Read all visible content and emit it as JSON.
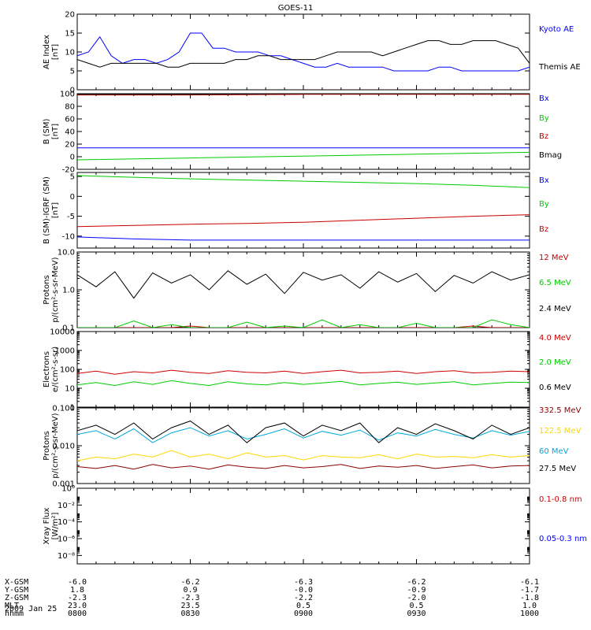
{
  "title": "GOES-11",
  "date": "2009 Jan 25",
  "chart_data": [
    {
      "type": "line",
      "ylabel": [
        "AE Index",
        "[nT]"
      ],
      "ylim": [
        0,
        20
      ],
      "yscale": "linear",
      "yticks": [
        0,
        5,
        10,
        15,
        20
      ],
      "series": [
        {
          "name": "Kyoto AE",
          "color": "#0000ff",
          "x": [
            800,
            803,
            806,
            809,
            812,
            815,
            818,
            821,
            824,
            827,
            830,
            833,
            836,
            839,
            842,
            845,
            848,
            851,
            854,
            857,
            900,
            903,
            906,
            909,
            912,
            915,
            918,
            921,
            924,
            927,
            930,
            933,
            936,
            939,
            942,
            945,
            948,
            951,
            954,
            957,
            1000
          ],
          "y": [
            9,
            10,
            14,
            9,
            7,
            8,
            8,
            7,
            8,
            10,
            15,
            15,
            11,
            11,
            10,
            10,
            10,
            9,
            9,
            8,
            7,
            6,
            6,
            7,
            6,
            6,
            6,
            6,
            5,
            5,
            5,
            5,
            6,
            6,
            5,
            5,
            5,
            5,
            5,
            5,
            6
          ]
        },
        {
          "name": "Themis AE",
          "color": "#000000",
          "x": [
            800,
            803,
            806,
            809,
            812,
            815,
            818,
            821,
            824,
            827,
            830,
            833,
            836,
            839,
            842,
            845,
            848,
            851,
            854,
            857,
            900,
            903,
            906,
            909,
            912,
            915,
            918,
            921,
            924,
            927,
            930,
            933,
            936,
            939,
            942,
            945,
            948,
            951,
            954,
            957,
            1000
          ],
          "y": [
            8,
            7,
            6,
            7,
            7,
            7,
            7,
            7,
            6,
            6,
            7,
            7,
            7,
            7,
            8,
            8,
            9,
            9,
            8,
            8,
            8,
            8,
            9,
            10,
            10,
            10,
            10,
            9,
            10,
            11,
            12,
            13,
            13,
            12,
            12,
            13,
            13,
            13,
            12,
            11,
            7
          ]
        }
      ]
    },
    {
      "type": "line",
      "ylabel": [
        "B (SM)",
        "[nT]"
      ],
      "ylim": [
        -20,
        100
      ],
      "yscale": "linear",
      "yticks": [
        -20,
        0,
        20,
        40,
        60,
        80,
        100
      ],
      "series": [
        {
          "name": "Bx",
          "color": "#0000ff",
          "x": [
            800,
            1000
          ],
          "y": [
            14,
            14
          ]
        },
        {
          "name": "By",
          "color": "#00cc00",
          "x": [
            800,
            830,
            900,
            930,
            1000
          ],
          "y": [
            -5,
            -2,
            1,
            4,
            7
          ]
        },
        {
          "name": "Bz",
          "color": "#cc0000",
          "x": [
            800,
            830,
            900,
            930,
            1000
          ],
          "y": [
            98,
            98,
            99,
            99,
            99
          ]
        },
        {
          "name": "Bmag",
          "color": "#000000",
          "x": [
            800,
            830,
            900,
            930,
            1000
          ],
          "y": [
            99,
            99,
            100,
            100,
            100
          ]
        }
      ]
    },
    {
      "type": "line",
      "ylabel": [
        "B (SM)-IGRF (SM)",
        "[nT]"
      ],
      "ylim": [
        -13,
        6
      ],
      "yscale": "linear",
      "yticks": [
        -10,
        -5,
        0,
        5
      ],
      "series": [
        {
          "name": "Bx",
          "color": "#0000ff",
          "x": [
            800,
            815,
            830,
            845,
            900,
            915,
            930,
            945,
            1000
          ],
          "y": [
            -10.2,
            -10.7,
            -11,
            -11,
            -11,
            -11,
            -11,
            -11,
            -11
          ]
        },
        {
          "name": "By",
          "color": "#00cc00",
          "x": [
            800,
            815,
            830,
            845,
            900,
            915,
            930,
            945,
            1000
          ],
          "y": [
            5.2,
            4.8,
            4.4,
            4.1,
            3.8,
            3.5,
            3.2,
            2.8,
            2.2
          ]
        },
        {
          "name": "Bz",
          "color": "#cc0000",
          "x": [
            800,
            815,
            830,
            845,
            900,
            915,
            930,
            945,
            1000
          ],
          "y": [
            -7.6,
            -7.3,
            -7.0,
            -6.8,
            -6.5,
            -6.0,
            -5.5,
            -5.0,
            -4.6
          ]
        }
      ]
    },
    {
      "type": "line",
      "ylabel": [
        "Protons",
        "p/(cm²-s-sr-MeV)"
      ],
      "ylim": [
        0.1,
        10
      ],
      "yscale": "log",
      "yticks": [
        0.1,
        1.0,
        10.0
      ],
      "ytick_labels": [
        "0.1",
        "1.0",
        "10.0"
      ],
      "series": [
        {
          "name": "12 MeV",
          "color": "#cc0000",
          "x": [
            800,
            805,
            810,
            815,
            820,
            825,
            830,
            835,
            840,
            845,
            850,
            855,
            900,
            905,
            910,
            915,
            920,
            925,
            930,
            935,
            940,
            945,
            950,
            955,
            1000
          ],
          "y": [
            0.1,
            0.1,
            0.1,
            0.1,
            0.1,
            0.1,
            0.11,
            0.1,
            0.1,
            0.1,
            0.1,
            0.1,
            0.1,
            0.1,
            0.1,
            0.1,
            0.1,
            0.1,
            0.1,
            0.1,
            0.1,
            0.11,
            0.1,
            0.1,
            0.1
          ]
        },
        {
          "name": "6.5 MeV",
          "color": "#00cc00",
          "x": [
            800,
            805,
            810,
            815,
            820,
            825,
            830,
            835,
            840,
            845,
            850,
            855,
            900,
            905,
            910,
            915,
            920,
            925,
            930,
            935,
            940,
            945,
            950,
            955,
            1000
          ],
          "y": [
            0.1,
            0.1,
            0.1,
            0.15,
            0.1,
            0.12,
            0.1,
            0.1,
            0.1,
            0.14,
            0.1,
            0.11,
            0.1,
            0.16,
            0.1,
            0.12,
            0.1,
            0.1,
            0.13,
            0.1,
            0.1,
            0.1,
            0.16,
            0.12,
            0.1
          ]
        },
        {
          "name": "2.4 MeV",
          "color": "#000000",
          "x": [
            800,
            805,
            810,
            815,
            820,
            825,
            830,
            835,
            840,
            845,
            850,
            855,
            900,
            905,
            910,
            915,
            920,
            925,
            930,
            935,
            940,
            945,
            950,
            955,
            1000
          ],
          "y": [
            2.5,
            1.2,
            3.0,
            0.6,
            2.8,
            1.5,
            2.5,
            1.0,
            3.2,
            1.4,
            2.6,
            0.8,
            2.9,
            1.8,
            2.5,
            1.1,
            3.0,
            1.6,
            2.7,
            0.9,
            2.4,
            1.5,
            3.0,
            1.8,
            2.5
          ]
        }
      ]
    },
    {
      "type": "line",
      "ylabel": [
        "Electrons",
        "e/(cm²-s-sr)"
      ],
      "ylim": [
        1,
        10000
      ],
      "yscale": "log",
      "yticks": [
        1,
        10,
        100,
        1000,
        10000
      ],
      "ytick_labels": [
        "1",
        "10",
        "100",
        "1000",
        "10000"
      ],
      "series": [
        {
          "name": "4.0 MeV",
          "color": "#cc0000",
          "x": [
            800,
            805,
            810,
            815,
            820,
            825,
            830,
            835,
            840,
            845,
            850,
            855,
            900,
            905,
            910,
            915,
            920,
            925,
            930,
            935,
            940,
            945,
            950,
            955,
            1000
          ],
          "y": [
            60,
            80,
            55,
            75,
            65,
            90,
            70,
            60,
            85,
            70,
            65,
            80,
            60,
            75,
            90,
            65,
            70,
            80,
            60,
            75,
            85,
            65,
            70,
            80,
            75
          ]
        },
        {
          "name": "2.0 MeV",
          "color": "#00cc00",
          "x": [
            800,
            805,
            810,
            815,
            820,
            825,
            830,
            835,
            840,
            845,
            850,
            855,
            900,
            905,
            910,
            915,
            920,
            925,
            930,
            935,
            940,
            945,
            950,
            955,
            1000
          ],
          "y": [
            15,
            20,
            14,
            22,
            16,
            25,
            18,
            14,
            22,
            17,
            15,
            20,
            16,
            19,
            23,
            15,
            18,
            21,
            16,
            19,
            22,
            15,
            18,
            21,
            20
          ]
        },
        {
          "name": "0.6 MeV",
          "color": "#000000",
          "x": [
            800,
            1000
          ],
          "y": [
            10000,
            10000
          ]
        }
      ]
    },
    {
      "type": "line",
      "ylabel": [
        "Protons",
        "p/(cm²-s-sr-MeV)"
      ],
      "ylim": [
        0.001,
        0.1
      ],
      "yscale": "log",
      "yticks": [
        0.001,
        0.01,
        0.1
      ],
      "ytick_labels": [
        "0.001",
        "0.010",
        "0.100"
      ],
      "series": [
        {
          "name": "332.5 MeV",
          "color": "#8b0000",
          "x": [
            800,
            805,
            810,
            815,
            820,
            825,
            830,
            835,
            840,
            845,
            850,
            855,
            900,
            905,
            910,
            915,
            920,
            925,
            930,
            935,
            940,
            945,
            950,
            955,
            1000
          ],
          "y": [
            0.0028,
            0.0025,
            0.003,
            0.0024,
            0.0032,
            0.0026,
            0.0029,
            0.0024,
            0.0031,
            0.0027,
            0.0025,
            0.003,
            0.0026,
            0.0028,
            0.0032,
            0.0025,
            0.0029,
            0.0027,
            0.003,
            0.0025,
            0.0028,
            0.0031,
            0.0026,
            0.0029,
            0.003
          ]
        },
        {
          "name": "122.5 MeV",
          "color": "#ffd700",
          "x": [
            800,
            805,
            810,
            815,
            820,
            825,
            830,
            835,
            840,
            845,
            850,
            855,
            900,
            905,
            910,
            915,
            920,
            925,
            930,
            935,
            940,
            945,
            950,
            955,
            1000
          ],
          "y": [
            0.004,
            0.005,
            0.0045,
            0.006,
            0.005,
            0.0075,
            0.005,
            0.006,
            0.0045,
            0.0065,
            0.005,
            0.0055,
            0.0042,
            0.0055,
            0.005,
            0.0048,
            0.0058,
            0.0045,
            0.006,
            0.005,
            0.0052,
            0.0048,
            0.0058,
            0.005,
            0.0055
          ]
        },
        {
          "name": "60 MeV",
          "color": "#00aadd",
          "x": [
            800,
            805,
            810,
            815,
            820,
            825,
            830,
            835,
            840,
            845,
            850,
            855,
            900,
            905,
            910,
            915,
            920,
            925,
            930,
            935,
            940,
            945,
            950,
            955,
            1000
          ],
          "y": [
            0.02,
            0.025,
            0.015,
            0.028,
            0.012,
            0.022,
            0.03,
            0.018,
            0.025,
            0.015,
            0.02,
            0.028,
            0.016,
            0.024,
            0.019,
            0.026,
            0.014,
            0.022,
            0.018,
            0.027,
            0.02,
            0.016,
            0.025,
            0.019,
            0.024
          ]
        },
        {
          "name": "27.5 MeV",
          "color": "#000000",
          "x": [
            800,
            805,
            810,
            815,
            820,
            825,
            830,
            835,
            840,
            845,
            850,
            855,
            900,
            905,
            910,
            915,
            920,
            925,
            930,
            935,
            940,
            945,
            950,
            955,
            1000
          ],
          "y": [
            0.025,
            0.035,
            0.02,
            0.04,
            0.015,
            0.03,
            0.045,
            0.02,
            0.035,
            0.012,
            0.03,
            0.04,
            0.018,
            0.035,
            0.025,
            0.04,
            0.012,
            0.03,
            0.02,
            0.038,
            0.025,
            0.015,
            0.035,
            0.02,
            0.03
          ]
        }
      ]
    },
    {
      "type": "line",
      "ylabel": [
        "Xray Flux",
        "[W/m²]"
      ],
      "ylim": [
        1e-09,
        1
      ],
      "yscale": "log",
      "yticks": [
        1e-08,
        1e-06,
        0.0001,
        0.01,
        1
      ],
      "ytick_labels": [
        "10⁻⁸",
        "10⁻⁶",
        "10⁻⁴",
        "10⁻²",
        "10⁰"
      ],
      "series": [
        {
          "name": "0.1-0.8 nm",
          "color": "#cc0000",
          "x": [],
          "y": []
        },
        {
          "name": "0.05-0.3 nm",
          "color": "#0000ff",
          "x": [],
          "y": []
        }
      ]
    }
  ],
  "xaxis": {
    "labels": [
      "X-GSM",
      "Y-GSM",
      "Z-GSM",
      "MLT",
      "hhmm"
    ],
    "columns": [
      {
        "x": 800,
        "values": [
          "-6.0",
          "1.8",
          "-2.3",
          "23.0",
          "0800"
        ]
      },
      {
        "x": 830,
        "values": [
          "-6.2",
          "0.9",
          "-2.3",
          "23.5",
          "0830"
        ]
      },
      {
        "x": 900,
        "values": [
          "-6.3",
          "-0.0",
          "-2.2",
          "0.5",
          "0900"
        ]
      },
      {
        "x": 930,
        "values": [
          "-6.2",
          "-0.9",
          "-2.0",
          "0.5",
          "0930"
        ]
      },
      {
        "x": 1000,
        "values": [
          "-6.1",
          "-1.7",
          "-1.8",
          "1.0",
          "1000"
        ]
      }
    ]
  }
}
